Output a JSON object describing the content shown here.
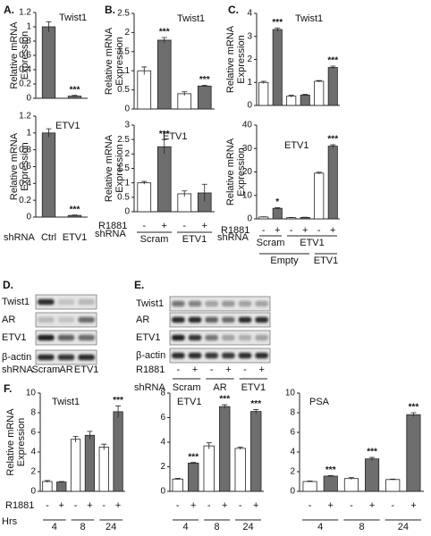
{
  "panels": [
    "A.",
    "B.",
    "C.",
    "D.",
    "E.",
    "F."
  ],
  "chart_data": [
    {
      "type": "bar",
      "title": "Twist1",
      "ylabel": [
        "Relative mRNA",
        "Expression"
      ],
      "ylim": [
        0,
        1.2
      ],
      "yticks": [
        0,
        0.2,
        0.4,
        0.6,
        0.8,
        1,
        1.2
      ],
      "values": [
        1.0,
        0.03
      ],
      "errors": [
        0.07,
        0.01
      ],
      "colors": [
        "#6e6e6e",
        "#6e6e6e"
      ],
      "annotations": [
        null,
        "***"
      ]
    },
    {
      "type": "bar",
      "title": "ETV1",
      "ylabel": [
        "Relative mRNA",
        "Expression"
      ],
      "ylim": [
        0,
        1.2
      ],
      "yticks": [
        0,
        0.2,
        0.4,
        0.6,
        0.8,
        1,
        1.2
      ],
      "values": [
        1.0,
        0.02
      ],
      "errors": [
        0.05,
        0.005
      ],
      "colors": [
        "#6e6e6e",
        "#6e6e6e"
      ],
      "annotations": [
        null,
        "***"
      ],
      "xlabel": "shRNA",
      "categories": [
        "Ctrl",
        "ETV1"
      ]
    },
    {
      "type": "bar",
      "title": "Twist1",
      "ylabel": [
        "Relative mRNA",
        "Expression"
      ],
      "ylim": [
        0,
        2.5
      ],
      "yticks": [
        0,
        0.5,
        1,
        1.5,
        2,
        2.5
      ],
      "values": [
        1.0,
        1.8,
        0.4,
        0.6
      ],
      "errors": [
        0.1,
        0.07,
        0.05,
        0.02
      ],
      "colors": [
        "#ffffff",
        "#6e6e6e",
        "#ffffff",
        "#6e6e6e"
      ],
      "annotations": [
        null,
        "***",
        null,
        "***"
      ]
    },
    {
      "type": "bar",
      "title": "ETV1",
      "ylabel": [
        "Relative mRNA",
        "Expression"
      ],
      "ylim": [
        0,
        3
      ],
      "yticks": [
        0,
        0.5,
        1,
        1.5,
        2,
        2.5,
        3
      ],
      "values": [
        1.0,
        2.25,
        0.62,
        0.65
      ],
      "errors": [
        0.05,
        0.25,
        0.1,
        0.3
      ],
      "colors": [
        "#ffffff",
        "#6e6e6e",
        "#ffffff",
        "#6e6e6e"
      ],
      "annotations": [
        null,
        "***",
        null,
        null
      ],
      "sign_label": "R1881",
      "signs": [
        "-",
        "+",
        "-",
        "+"
      ],
      "xlabel": "shRNA",
      "groups": [
        {
          "name": "Scram",
          "span": 2
        },
        {
          "name": "ETV1",
          "span": 2
        }
      ]
    },
    {
      "type": "bar",
      "title": "Twist1",
      "ylabel": [
        "Relative mRNA",
        "Expression"
      ],
      "ylim": [
        0,
        4
      ],
      "yticks": [
        0,
        1,
        2,
        3,
        4
      ],
      "values": [
        1.0,
        3.3,
        0.4,
        0.45,
        1.05,
        1.65
      ],
      "errors": [
        0.05,
        0.07,
        0.04,
        0.03,
        0.03,
        0.06
      ],
      "colors": [
        "#ffffff",
        "#6e6e6e",
        "#ffffff",
        "#6e6e6e",
        "#ffffff",
        "#6e6e6e"
      ],
      "annotations": [
        null,
        "***",
        null,
        null,
        null,
        "***"
      ]
    },
    {
      "type": "bar",
      "title": "ETV1",
      "ylabel": [
        "Relative mRNA",
        "Expression"
      ],
      "ylim": [
        0,
        40
      ],
      "yticks": [
        0,
        10,
        20,
        30,
        40
      ],
      "values": [
        0.8,
        4.5,
        0.5,
        0.6,
        19.5,
        31
      ],
      "errors": [
        0.1,
        0.3,
        0.1,
        0.1,
        0.4,
        0.6
      ],
      "colors": [
        "#ffffff",
        "#6e6e6e",
        "#ffffff",
        "#6e6e6e",
        "#ffffff",
        "#6e6e6e"
      ],
      "annotations": [
        null,
        "*",
        null,
        null,
        null,
        "***"
      ],
      "sign_label": "R1881",
      "signs": [
        "-",
        "+",
        "-",
        "+",
        "-",
        "+"
      ],
      "xlabel": "shRNA",
      "groups": [
        {
          "name": "Scram",
          "span": 2
        },
        {
          "name": "ETV1",
          "span": 4
        }
      ],
      "groups2": [
        {
          "name": "Empty",
          "span": 4
        },
        {
          "name": "ETV1",
          "span": 2
        }
      ]
    },
    {
      "type": "bar",
      "title": "Twist1",
      "ylabel": [
        "Relative mRNA",
        "Expression"
      ],
      "ylim": [
        0,
        10
      ],
      "yticks": [
        0,
        2,
        4,
        6,
        8,
        10
      ],
      "values": [
        1.0,
        0.95,
        5.3,
        5.7,
        4.5,
        8.1
      ],
      "errors": [
        0.1,
        0.05,
        0.3,
        0.4,
        0.3,
        0.6
      ],
      "colors": [
        "#ffffff",
        "#6e6e6e",
        "#ffffff",
        "#6e6e6e",
        "#ffffff",
        "#6e6e6e"
      ],
      "annotations": [
        null,
        null,
        null,
        null,
        null,
        "***"
      ],
      "sign_label": "R1881",
      "signs": [
        "-",
        "+",
        "-",
        "+",
        "-",
        "+"
      ],
      "xlabel": "Hrs",
      "groups": [
        {
          "name": "4",
          "span": 2
        },
        {
          "name": "8",
          "span": 2
        },
        {
          "name": "24",
          "span": 2
        }
      ]
    },
    {
      "type": "bar",
      "title": "ETV1",
      "ylim": [
        0,
        8
      ],
      "yticks": [
        0,
        2,
        4,
        6,
        8
      ],
      "values": [
        1.0,
        2.3,
        3.7,
        6.9,
        3.5,
        6.5
      ],
      "errors": [
        0.05,
        0.05,
        0.25,
        0.15,
        0.1,
        0.15
      ],
      "colors": [
        "#ffffff",
        "#6e6e6e",
        "#ffffff",
        "#6e6e6e",
        "#ffffff",
        "#6e6e6e"
      ],
      "annotations": [
        null,
        "***",
        null,
        "***",
        null,
        "***"
      ],
      "signs": [
        "-",
        "+",
        "-",
        "+",
        "-",
        "+"
      ],
      "groups": [
        {
          "name": "4",
          "span": 2
        },
        {
          "name": "8",
          "span": 2
        },
        {
          "name": "24",
          "span": 2
        }
      ]
    },
    {
      "type": "bar",
      "title": "PSA",
      "ylim": [
        0,
        10
      ],
      "yticks": [
        0,
        2,
        4,
        6,
        8,
        10
      ],
      "values": [
        1.0,
        1.55,
        1.3,
        3.3,
        1.2,
        7.8
      ],
      "errors": [
        0.05,
        0.05,
        0.1,
        0.15,
        0.05,
        0.2
      ],
      "colors": [
        "#ffffff",
        "#6e6e6e",
        "#ffffff",
        "#6e6e6e",
        "#ffffff",
        "#6e6e6e"
      ],
      "annotations": [
        null,
        "***",
        null,
        "***",
        null,
        "***"
      ],
      "signs": [
        "-",
        "+",
        "-",
        "+",
        "-",
        "+"
      ],
      "groups": [
        {
          "name": "4",
          "span": 2
        },
        {
          "name": "8",
          "span": 2
        },
        {
          "name": "24",
          "span": 2
        }
      ]
    }
  ],
  "blots": [
    {
      "rows": [
        "Twist1",
        "AR",
        "ETV1",
        "β-actin"
      ],
      "xlabel": "shRNA",
      "lanes": [
        "Scram",
        "AR",
        "ETV1"
      ]
    },
    {
      "rows": [
        "Twist1",
        "AR",
        "ETV1",
        "β-actin"
      ],
      "sign_label": "R1881",
      "signs": [
        "-",
        "+",
        "-",
        "+",
        "-",
        "+"
      ],
      "xlabel": "shRNA",
      "groups": [
        "Scram",
        "AR",
        "ETV1"
      ]
    }
  ]
}
